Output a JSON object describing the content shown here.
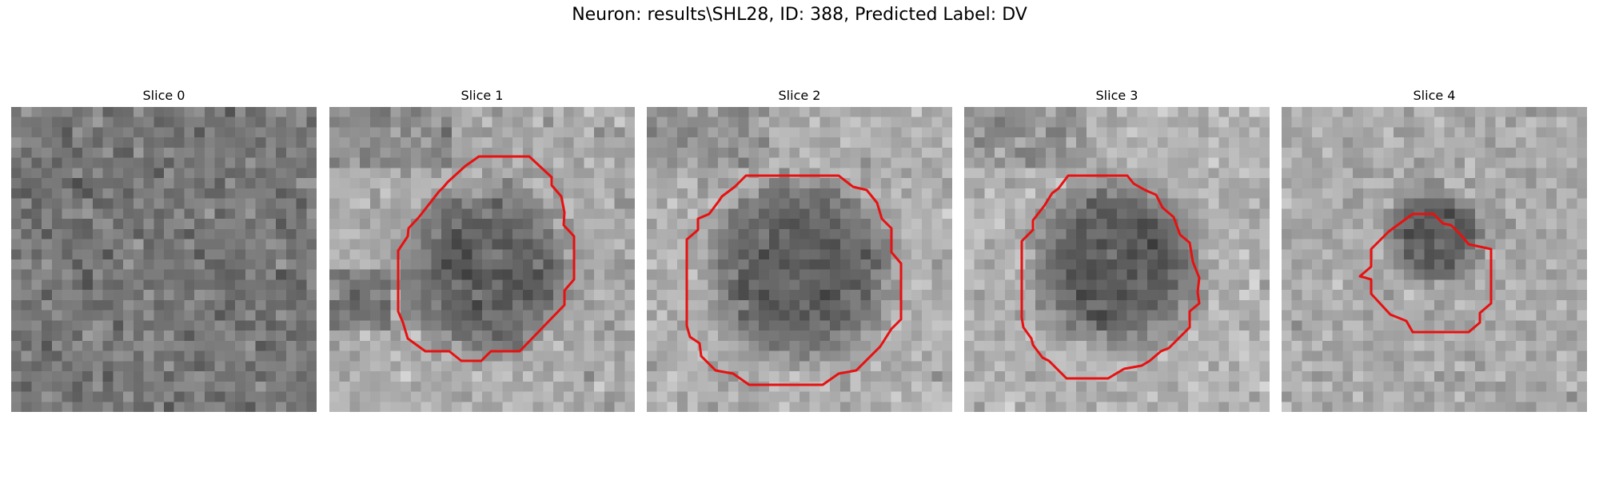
{
  "figure": {
    "title": "Neuron: results\\SHL28, ID: 388, Predicted Label: DV"
  },
  "contour_color": "#e81010",
  "panels": [
    {
      "title": "Slice 0",
      "has_contour": false
    },
    {
      "title": "Slice 1",
      "has_contour": true
    },
    {
      "title": "Slice 2",
      "has_contour": true
    },
    {
      "title": "Slice 3",
      "has_contour": true
    },
    {
      "title": "Slice 4",
      "has_contour": true
    }
  ]
}
